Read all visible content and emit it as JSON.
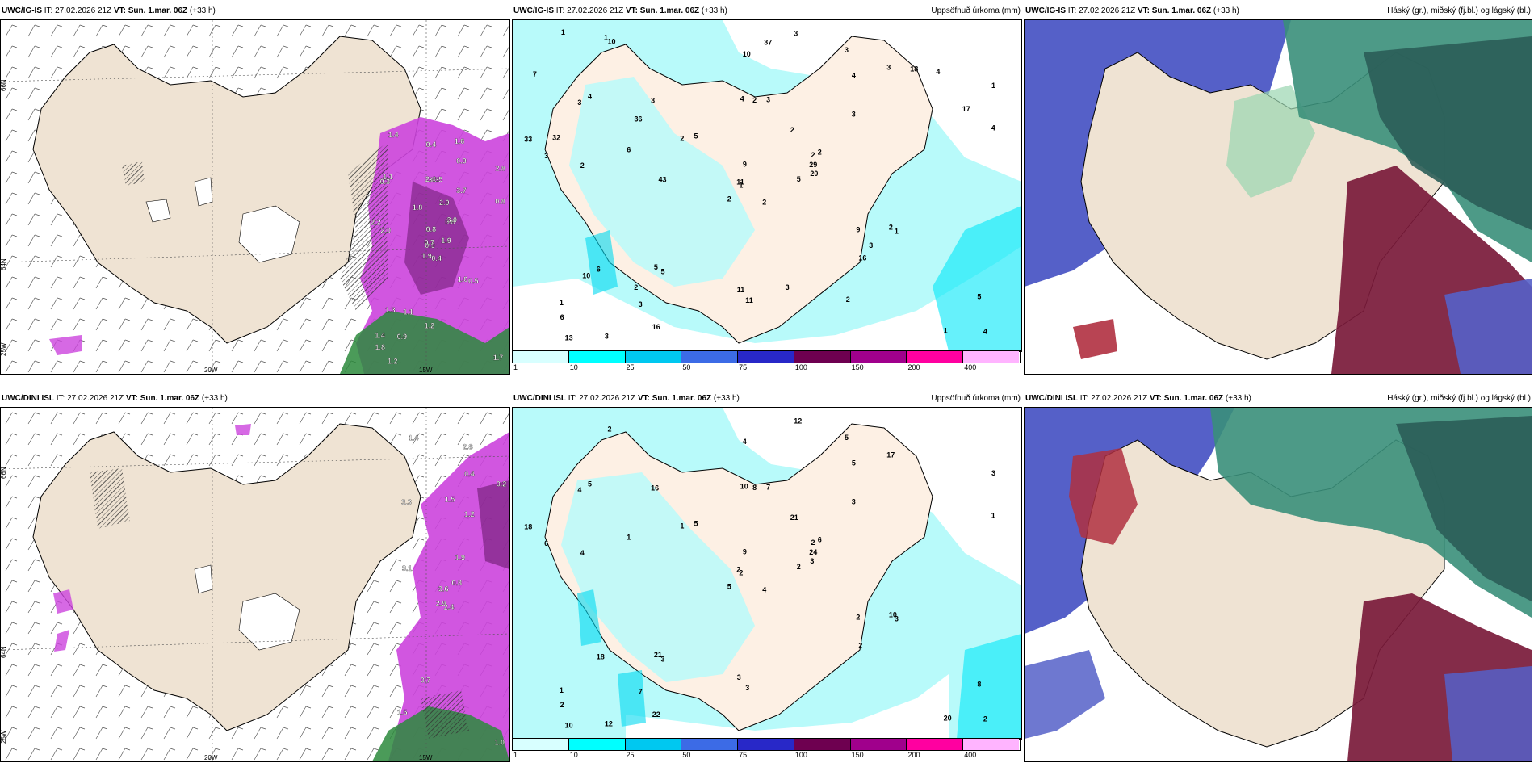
{
  "rows": [
    {
      "model": "UWC/IG-IS",
      "it_label": "IT:",
      "it_value": "27.02.2026 21Z",
      "vt_label": "VT:",
      "vt_value": "Sun. 1.mar. 06Z",
      "lead": "(+33 h)"
    },
    {
      "model": "UWC/DINI ISL",
      "it_label": "IT:",
      "it_value": "27.02.2026 21Z",
      "vt_label": "VT:",
      "vt_value": "Sun. 1.mar. 06Z",
      "lead": "(+33 h)"
    }
  ],
  "panel_titles": {
    "precip": "Uppsöfnuð úrkoma (mm)",
    "clouds": "Háský (gr.), miðský (fj.bl.) og lágský (bl.)"
  },
  "map_ticks": {
    "lat_66": "66N",
    "lat_64": "64N",
    "lon_25": "25W",
    "lon_20": "20W",
    "lon_15": "15W"
  },
  "colorbar": {
    "labels": [
      "1",
      "10",
      "25",
      "50",
      "75",
      "100",
      "150",
      "200",
      "400"
    ],
    "colors": [
      "#d8ffff",
      "#00ffff",
      "#00c8f0",
      "#3c6be6",
      "#2828c8",
      "#6e0050",
      "#a0008c",
      "#ff00a0",
      "#ffb4ff"
    ]
  },
  "wind_panel_values": {
    "top": [
      "0.4",
      "0.3",
      "0.9",
      "1.4",
      "0.8",
      "1.1",
      "1.6",
      "1.5",
      "0.9",
      "1.9",
      "1.4",
      "1.7",
      "2.0",
      "2.8",
      "1.9",
      "3.7",
      "1.2",
      "2.4",
      "2.0",
      "1.3",
      "1.8",
      "1.8",
      "0.9",
      "3.3",
      "3.0",
      "0.5",
      "1.1",
      "0.4",
      "2.2",
      "1.0",
      "0.8",
      "0.7",
      "1.2",
      "0.8"
    ],
    "bottom": [
      "2.4",
      "3.3",
      "3.6",
      "1.5",
      "1.9",
      "0.7",
      "2.8",
      "1.5",
      "0.4",
      "0.8",
      "1.4",
      "1.0",
      "3.1",
      "0.2",
      "2.9",
      "1.2"
    ]
  },
  "precip_values": {
    "top": [
      "2",
      "3",
      "1",
      "1",
      "2",
      "5",
      "3",
      "3",
      "4",
      "5",
      "10",
      "4",
      "2",
      "1",
      "2",
      "3",
      "3",
      "4",
      "2",
      "6",
      "5",
      "6",
      "3",
      "2",
      "2",
      "1",
      "4",
      "10",
      "3",
      "9",
      "4",
      "11",
      "11",
      "9",
      "3",
      "3",
      "5",
      "1",
      "5",
      "2",
      "3",
      "2",
      "6",
      "16",
      "16",
      "33",
      "29",
      "13",
      "11",
      "20",
      "10",
      "17",
      "7",
      "3",
      "2",
      "2",
      "1",
      "1",
      "3",
      "4",
      "37",
      "43",
      "32",
      "36",
      "18"
    ],
    "bottom": [
      "4",
      "4",
      "2",
      "1",
      "2",
      "3",
      "5",
      "7",
      "5",
      "2",
      "2",
      "2",
      "4",
      "3",
      "5",
      "3",
      "12",
      "10",
      "21",
      "18",
      "5",
      "2",
      "7",
      "8",
      "6",
      "3",
      "5",
      "4",
      "6",
      "2",
      "1",
      "2",
      "3",
      "9",
      "16",
      "17",
      "21",
      "20",
      "8",
      "10",
      "12",
      "1",
      "1",
      "2",
      "22",
      "18",
      "24",
      "10",
      "3",
      "3"
    ]
  },
  "colors": {
    "land": "#efe3d3",
    "land_light": "#fdf0e4",
    "ice": "#ffffff",
    "sea_light": "#b8fafa",
    "magenta": "#cc44dd",
    "dark_purple": "#6a1a6e",
    "green": "#2c8a3c",
    "deep_blue": "#5560c8",
    "teal": "#3a8f7a",
    "dark_teal": "#2b5d58",
    "maroon": "#7a1a3a"
  }
}
